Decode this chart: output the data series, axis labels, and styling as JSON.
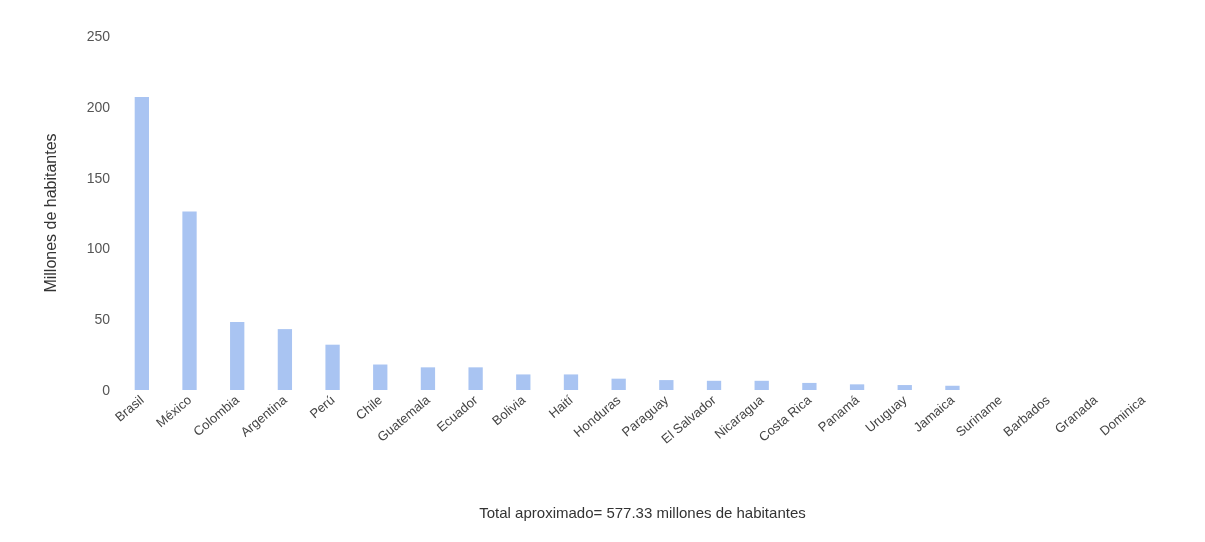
{
  "chart_data": {
    "type": "bar",
    "ylabel": "Millones de habitantes",
    "xlabel": "Total aproximado= 577.33 millones de habitantes",
    "categories": [
      "Brasil",
      "México",
      "Colombia",
      "Argentina",
      "Perú",
      "Chile",
      "Guatemala",
      "Ecuador",
      "Bolivia",
      "Haití",
      "Honduras",
      "Paraguay",
      "El Salvador",
      "Nicaragua",
      "Costa Rica",
      "Panamá",
      "Uruguay",
      "Jamaica",
      "Suriname",
      "Barbados",
      "Granada",
      "Dominica"
    ],
    "values": [
      207,
      126,
      48,
      43,
      32,
      18,
      16,
      16,
      11,
      11,
      8,
      7,
      6.5,
      6.5,
      5,
      4,
      3.5,
      3,
      null,
      null,
      null,
      null
    ],
    "color": "#a9c4f2",
    "ylim": [
      0,
      250
    ],
    "yticks": [
      0,
      50,
      100,
      150,
      200,
      250
    ],
    "grid": false
  }
}
